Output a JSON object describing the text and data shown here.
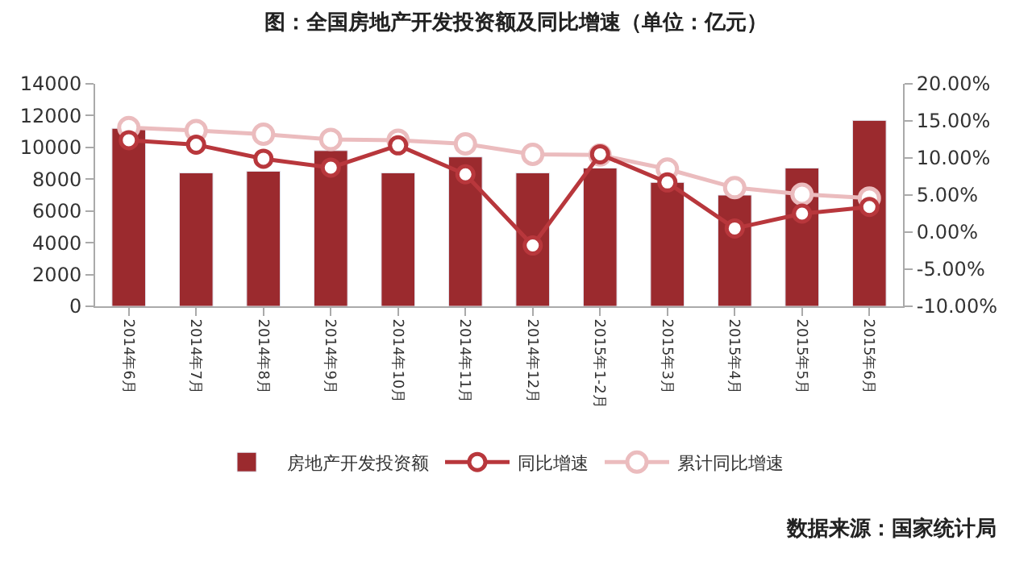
{
  "chart_data": {
    "type": "bar",
    "title": "图：全国房地产开发投资额及同比增速（单位：亿元）",
    "categories": [
      "2014年6月",
      "2014年7月",
      "2014年8月",
      "2014年9月",
      "2014年10月",
      "2014年11月",
      "2014年12月",
      "2015年1-2月",
      "2015年3月",
      "2015年4月",
      "2015年5月",
      "2015年6月"
    ],
    "series": [
      {
        "name": "房地产开发投资额",
        "color": "#9b2a2e",
        "values": [
          11200,
          8400,
          8500,
          9800,
          8400,
          9400,
          8400,
          8700,
          7800,
          7000,
          8700,
          11700
        ]
      },
      {
        "name": "同比增速",
        "type": "line",
        "axis": "y2",
        "color": "#b8373c",
        "marker": "circle",
        "values": [
          12.4,
          11.8,
          9.9,
          8.7,
          11.7,
          7.8,
          -1.8,
          10.5,
          6.7,
          0.5,
          2.5,
          3.4
        ]
      },
      {
        "name": "累计同比增速",
        "type": "line",
        "axis": "y2",
        "color": "#ebbcbe",
        "marker": "circle",
        "values": [
          14.1,
          13.7,
          13.2,
          12.5,
          12.4,
          11.9,
          10.5,
          10.4,
          8.5,
          6.0,
          5.1,
          4.6
        ]
      }
    ],
    "ylim": [
      0,
      14000
    ],
    "yticks": [
      0,
      2000,
      4000,
      6000,
      8000,
      10000,
      12000,
      14000
    ],
    "y2lim": [
      -10,
      20
    ],
    "y2ticks": [
      {
        "value": -10,
        "label": "-10.00%"
      },
      {
        "value": -5,
        "label": "-5.00%"
      },
      {
        "value": 0,
        "label": "0.00%"
      },
      {
        "value": 5,
        "label": "5.00%"
      },
      {
        "value": 10,
        "label": "10.00%"
      },
      {
        "value": 15,
        "label": "15.00%"
      },
      {
        "value": 20,
        "label": "20.00%"
      }
    ],
    "legend": "bottom",
    "annotations": [
      "数据来源：国家统计局"
    ]
  }
}
